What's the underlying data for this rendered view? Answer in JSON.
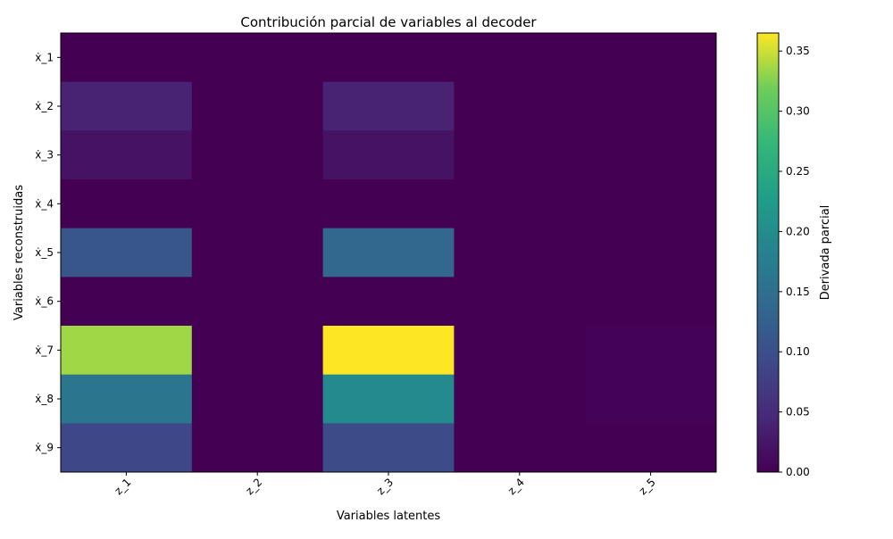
{
  "chart_data": {
    "type": "heatmap",
    "title": "Contribución parcial de variables al decoder",
    "xlabel": "Variables latentes",
    "ylabel": "Variables reconstruidas",
    "colorbar_label": "Derivada parcial",
    "x_categories": [
      "z_1",
      "z_2",
      "z_3",
      "z_4",
      "z_5"
    ],
    "y_categories": [
      "ẋ_1",
      "ẋ_2",
      "ẋ_3",
      "ẋ_4",
      "ẋ_5",
      "ẋ_6",
      "ẋ_7",
      "ẋ_8",
      "ẋ_9"
    ],
    "values": [
      [
        0.0,
        0.0,
        0.0,
        0.0,
        0.0
      ],
      [
        0.04,
        0.0,
        0.04,
        0.0,
        0.0
      ],
      [
        0.02,
        0.0,
        0.02,
        0.0,
        0.0
      ],
      [
        0.0,
        0.0,
        0.0,
        0.0,
        0.0
      ],
      [
        0.11,
        0.0,
        0.135,
        0.0,
        0.0
      ],
      [
        0.0,
        0.0,
        0.0,
        0.0,
        0.0
      ],
      [
        0.335,
        0.0,
        0.365,
        0.0,
        0.002
      ],
      [
        0.16,
        0.0,
        0.195,
        0.0,
        0.002
      ],
      [
        0.09,
        0.0,
        0.095,
        0.0,
        0.0
      ]
    ],
    "colorbar_range": [
      0.0,
      0.365
    ],
    "colorbar_ticks": [
      "0.00",
      "0.05",
      "0.10",
      "0.15",
      "0.20",
      "0.25",
      "0.30",
      "0.35"
    ],
    "colormap": "viridis",
    "x_tick_rotation": 45
  }
}
